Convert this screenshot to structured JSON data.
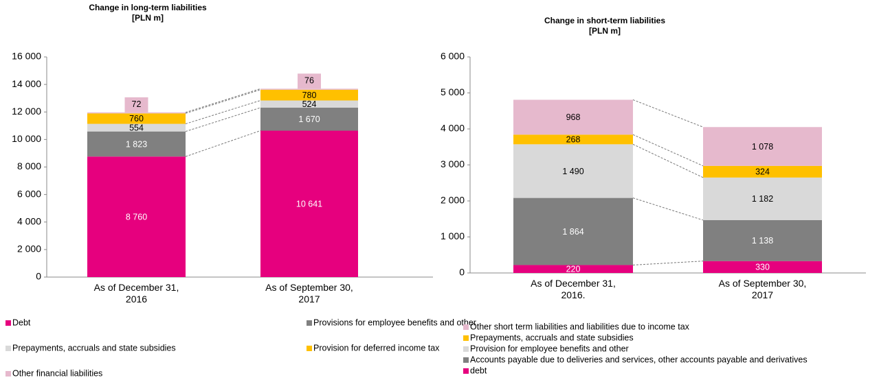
{
  "chart_data": [
    {
      "type": "bar",
      "stacked": true,
      "title": "Change in long-term liabilities",
      "subtitle": "[PLN m]",
      "categories": [
        "As of December 31, 2016",
        "As of September 30, 2017"
      ],
      "ylim": [
        0,
        16000
      ],
      "yticks": [
        0,
        {
          "value": 2000,
          "label": "2 000"
        },
        {
          "value": 4000,
          "label": "4 000"
        },
        {
          "value": 6000,
          "label": "6 000"
        },
        {
          "value": 8000,
          "label": "8 000"
        },
        {
          "value": 10000,
          "label": "10 000"
        },
        {
          "value": 12000,
          "label": "12 000"
        },
        {
          "value": 14000,
          "label": "14 000"
        },
        {
          "value": 16000,
          "label": "16 000"
        }
      ],
      "legend": "bottom",
      "series": [
        {
          "name": "Debt",
          "color": "#e6007e",
          "label_color": "#ffffff",
          "values": [
            8760,
            10641
          ],
          "value_labels": [
            "8 760",
            "10 641"
          ]
        },
        {
          "name": "Provisions for employee benefits and other",
          "color": "#808080",
          "label_color": "#ffffff",
          "values": [
            1823,
            1670
          ],
          "value_labels": [
            "1 823",
            "1 670"
          ]
        },
        {
          "name": "Prepayments, accruals and state subsidies",
          "color": "#d9d9d9",
          "label_color": "#000000",
          "values": [
            554,
            524
          ]
        },
        {
          "name": "Provision for deferred income tax",
          "color": "#ffc000",
          "label_color": "#000000",
          "values": [
            760,
            780
          ]
        },
        {
          "name": "Other financial liabilities",
          "color": "#e6b9cd",
          "label_color": "#000000",
          "values": [
            72,
            76
          ]
        }
      ]
    },
    {
      "type": "bar",
      "stacked": true,
      "title": "Change in short-term liabilities",
      "subtitle": "[PLN m]",
      "categories": [
        "As of December 31, 2016.",
        "As of September 30, 2017"
      ],
      "ylim": [
        0,
        6000
      ],
      "yticks": [
        0,
        {
          "value": 1000,
          "label": "1 000"
        },
        {
          "value": 2000,
          "label": "2 000"
        },
        {
          "value": 3000,
          "label": "3 000"
        },
        {
          "value": 4000,
          "label": "4 000"
        },
        {
          "value": 5000,
          "label": "5 000"
        },
        {
          "value": 6000,
          "label": "6 000"
        }
      ],
      "legend": "bottom",
      "series": [
        {
          "name": "debt",
          "color": "#e6007e",
          "label_color": "#ffffff",
          "values": [
            220,
            330
          ]
        },
        {
          "name": "Accounts payable due to deliveries and services, other accounts payable and derivatives",
          "color": "#808080",
          "label_color": "#ffffff",
          "values": [
            1864,
            1138
          ],
          "value_labels": [
            "1 864",
            "1 138"
          ]
        },
        {
          "name": "Provision for employee benefits and other",
          "color": "#d9d9d9",
          "label_color": "#000000",
          "values": [
            1490,
            1182
          ],
          "value_labels": [
            "1 490",
            "1 182"
          ]
        },
        {
          "name": "Prepayments, accruals and state subsidies",
          "color": "#ffc000",
          "label_color": "#000000",
          "values": [
            268,
            324
          ]
        },
        {
          "name": "Other short term liabilities and liabilities due to income tax",
          "color": "#e6b9cd",
          "label_color": "#000000",
          "values": [
            968,
            1078
          ],
          "value_labels": [
            "968",
            "1 078"
          ]
        }
      ]
    }
  ]
}
